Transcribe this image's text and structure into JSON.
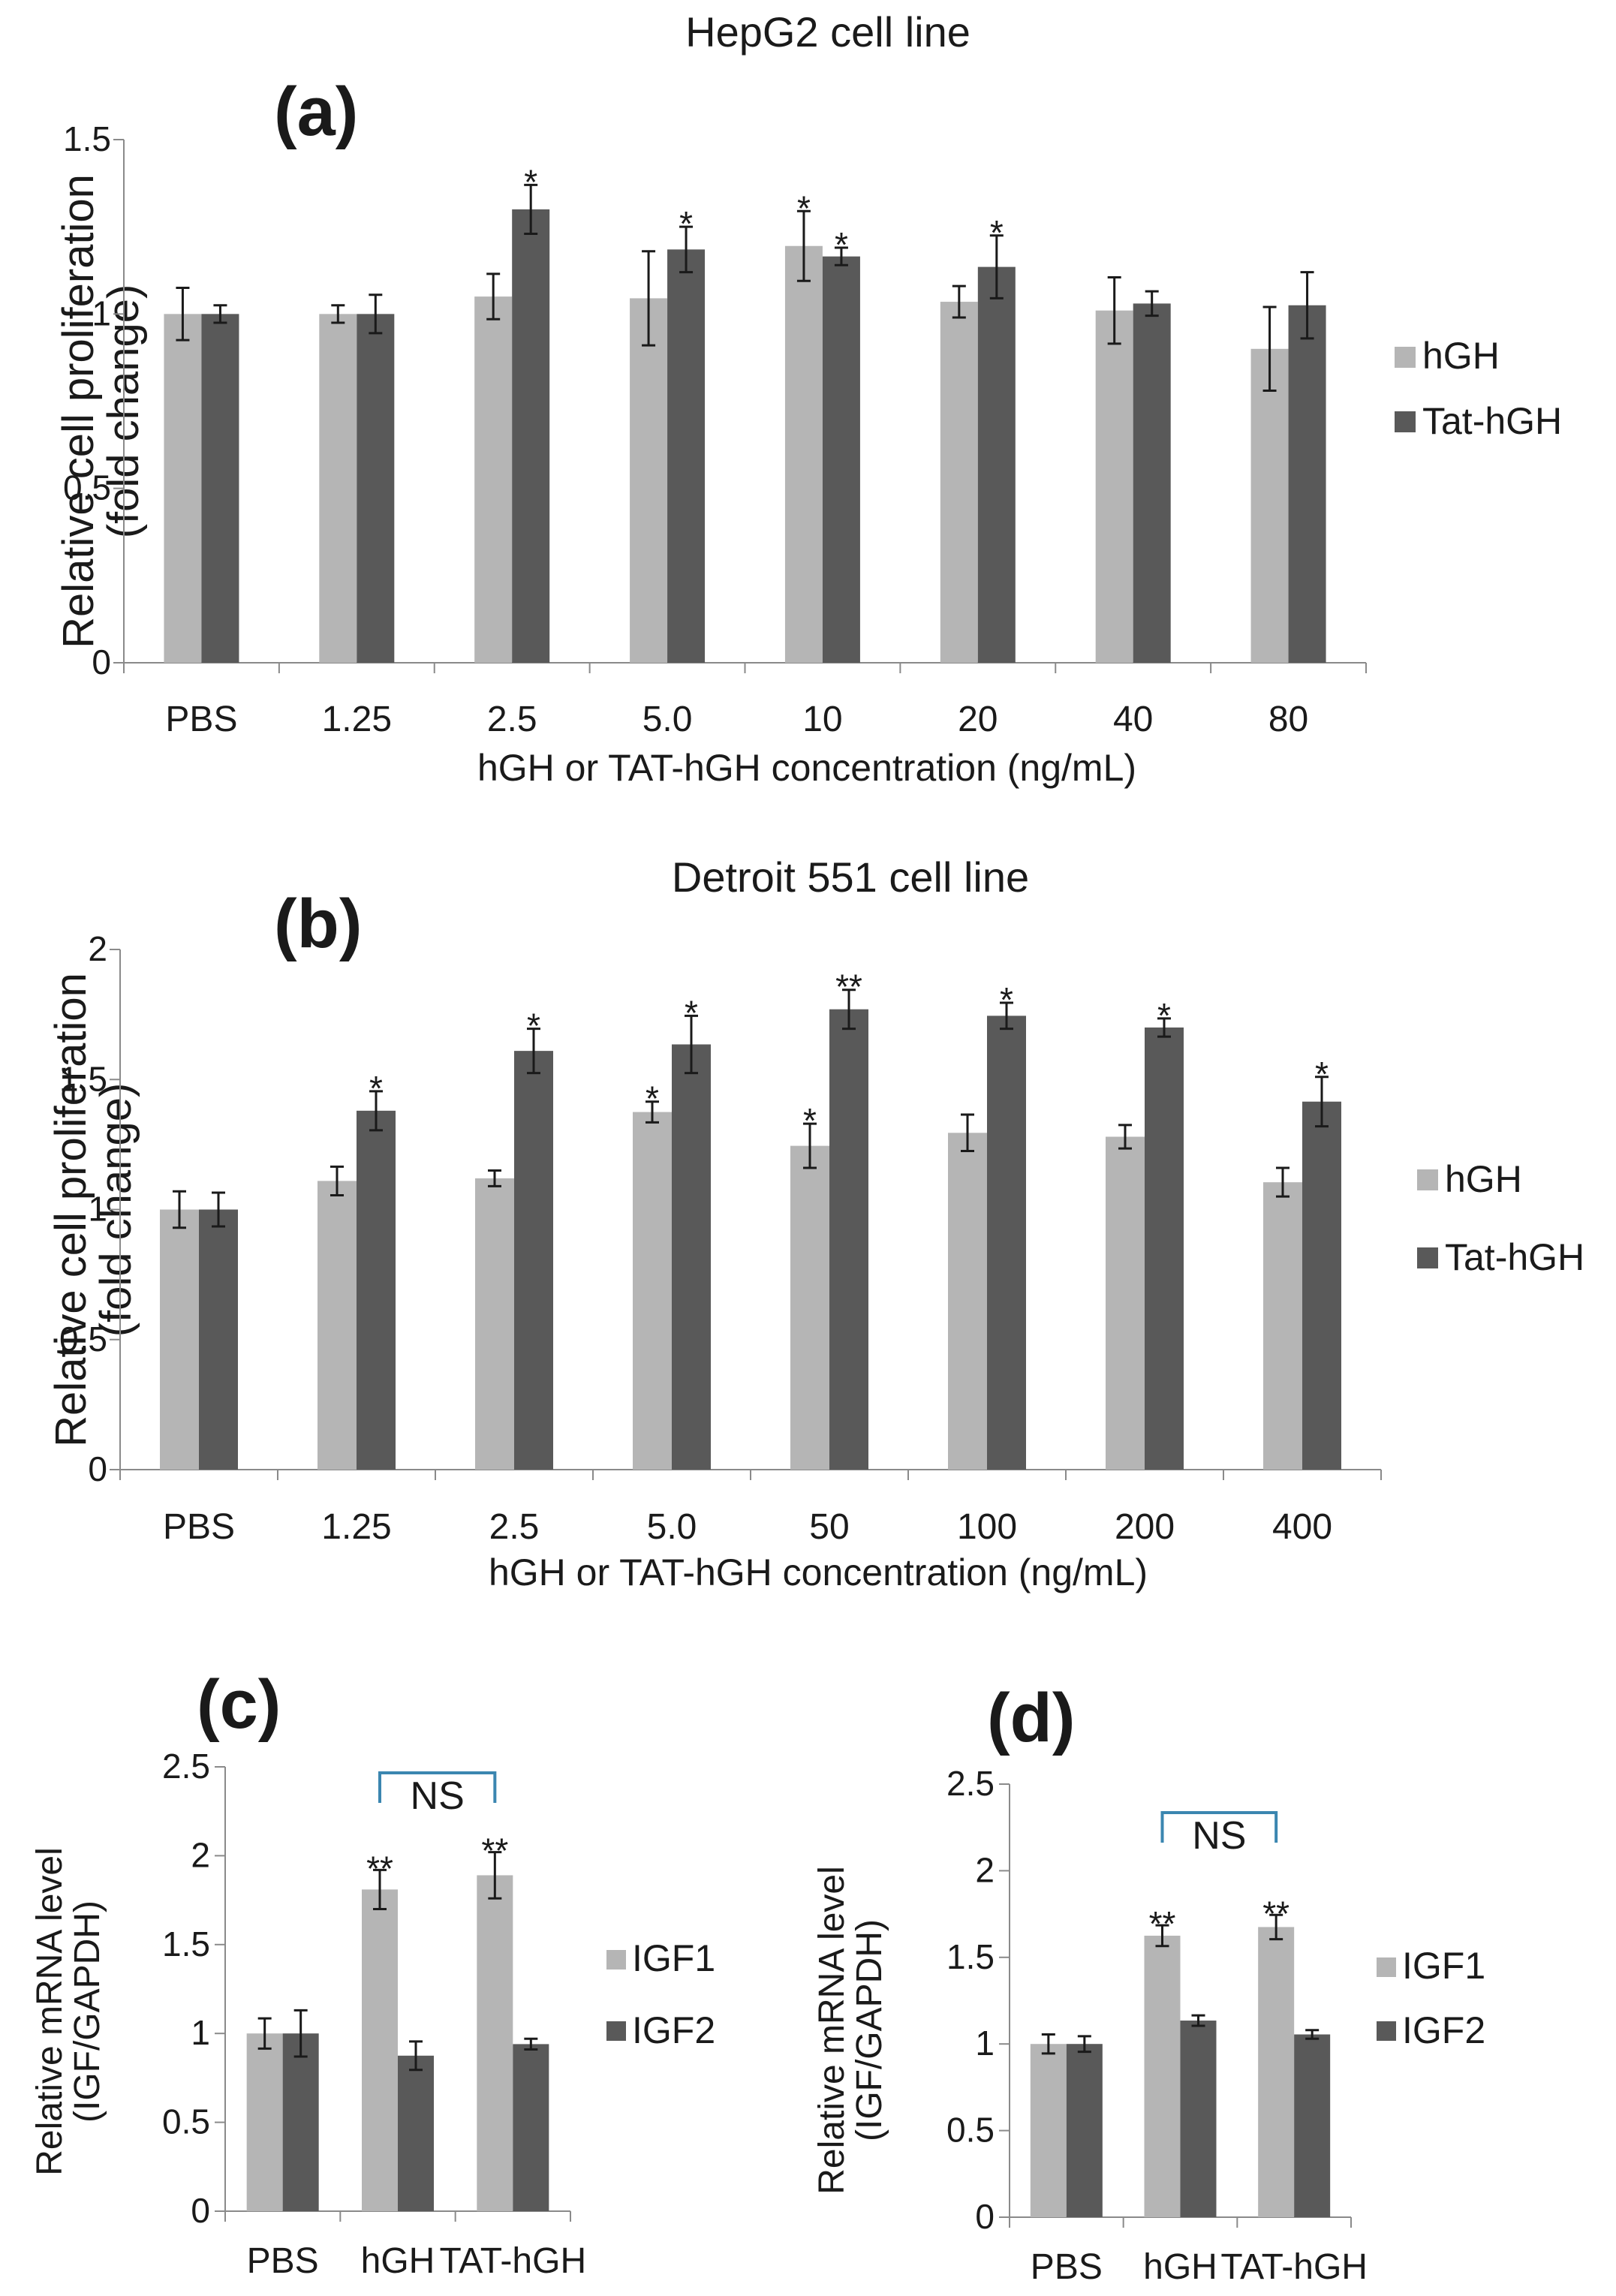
{
  "figure": {
    "colors": {
      "light": "#b5b5b5",
      "dark": "#595959",
      "axis": "#8a8a8a",
      "bracket": "#3b86b0"
    }
  },
  "chart_data": [
    {
      "id": "a",
      "type": "bar",
      "panel_label": "(a)",
      "title": "HepG2 cell line",
      "xlabel": "hGH or TAT-hGH concentration  (ng/mL)",
      "ylabel": [
        "Relative cell proliferation",
        "(fold change)"
      ],
      "ylim": [
        0,
        1.5
      ],
      "yticks": [
        0,
        0.5,
        1,
        1.5
      ],
      "ytick_labels": [
        "0",
        "0.5",
        "1",
        "1.5"
      ],
      "categories": [
        "PBS",
        "1.25",
        "2.5",
        "5.0",
        "10",
        "20",
        "40",
        "80"
      ],
      "series": [
        {
          "name": "hGH",
          "color": "light",
          "values": [
            1.0,
            1.0,
            1.05,
            1.045,
            1.195,
            1.035,
            1.01,
            0.9
          ],
          "errors": [
            0.075,
            0.025,
            0.065,
            0.135,
            0.1,
            0.045,
            0.095,
            0.12
          ],
          "sig": [
            "",
            "",
            "",
            "",
            "*",
            "",
            "",
            ""
          ]
        },
        {
          "name": "Tat-hGH",
          "color": "dark",
          "values": [
            1.0,
            1.0,
            1.3,
            1.185,
            1.165,
            1.135,
            1.03,
            1.025
          ],
          "errors": [
            0.025,
            0.055,
            0.07,
            0.065,
            0.025,
            0.09,
            0.035,
            0.095
          ],
          "sig": [
            "",
            "",
            "*",
            "*",
            "*",
            "*",
            "",
            ""
          ]
        }
      ]
    },
    {
      "id": "b",
      "type": "bar",
      "panel_label": "(b)",
      "title": "Detroit 551 cell line",
      "xlabel": "hGH or TAT-hGH concentration (ng/mL)",
      "ylabel": [
        "Relative cell proliferation",
        "(fold change)"
      ],
      "ylim": [
        0,
        2
      ],
      "yticks": [
        0,
        0.5,
        1,
        1.5,
        2
      ],
      "ytick_labels": [
        "0",
        "0.5",
        "1",
        "1.5",
        "2"
      ],
      "categories": [
        "PBS",
        "1.25",
        "2.5",
        "5.0",
        "50",
        "100",
        "200",
        "400"
      ],
      "series": [
        {
          "name": "hGH",
          "color": "light",
          "values": [
            1.0,
            1.11,
            1.12,
            1.375,
            1.245,
            1.295,
            1.28,
            1.105
          ],
          "errors": [
            0.07,
            0.055,
            0.03,
            0.04,
            0.085,
            0.07,
            0.045,
            0.055
          ],
          "sig": [
            "",
            "",
            "",
            "*",
            "*",
            "",
            "",
            ""
          ]
        },
        {
          "name": "Tat-hGH",
          "color": "dark",
          "values": [
            1.0,
            1.38,
            1.61,
            1.635,
            1.77,
            1.745,
            1.7,
            1.415
          ],
          "errors": [
            0.065,
            0.075,
            0.085,
            0.11,
            0.075,
            0.05,
            0.035,
            0.095
          ],
          "sig": [
            "",
            "*",
            "*",
            "*",
            "**",
            "*",
            "*",
            "*"
          ]
        }
      ]
    },
    {
      "id": "c",
      "type": "bar",
      "panel_label": "(c)",
      "title": "",
      "xlabel": "",
      "ylabel": [
        "Relative mRNA level",
        "(IGF/GAPDH)"
      ],
      "ylim": [
        0,
        2.5
      ],
      "yticks": [
        0,
        0.5,
        1,
        1.5,
        2,
        2.5
      ],
      "ytick_labels": [
        "0",
        "0.5",
        "1",
        "1.5",
        "2",
        "2.5"
      ],
      "categories": [
        "PBS",
        "hGH",
        "TAT-hGH"
      ],
      "series": [
        {
          "name": "IGF1",
          "color": "light",
          "values": [
            1.0,
            1.81,
            1.89
          ],
          "errors": [
            0.085,
            0.11,
            0.13
          ],
          "sig": [
            "",
            "**",
            "**"
          ]
        },
        {
          "name": "IGF2",
          "color": "dark",
          "values": [
            1.0,
            0.875,
            0.94
          ],
          "errors": [
            0.13,
            0.08,
            0.03
          ],
          "sig": [
            "",
            "",
            ""
          ]
        }
      ],
      "annotation": "NS"
    },
    {
      "id": "d",
      "type": "bar",
      "panel_label": "(d)",
      "title": "",
      "xlabel": "",
      "ylabel": [
        "Relative mRNA level",
        "(IGF/GAPDH)"
      ],
      "ylim": [
        0,
        2.5
      ],
      "yticks": [
        0,
        0.5,
        1,
        1.5,
        2,
        2.5
      ],
      "ytick_labels": [
        "0",
        "0.5",
        "1",
        "1.5",
        "2",
        "2.5"
      ],
      "categories": [
        "PBS",
        "hGH",
        "TAT-hGH"
      ],
      "series": [
        {
          "name": "IGF1",
          "color": "light",
          "values": [
            1.0,
            1.625,
            1.675
          ],
          "errors": [
            0.055,
            0.06,
            0.07
          ],
          "sig": [
            "",
            "**",
            "**"
          ]
        },
        {
          "name": "IGF2",
          "color": "dark",
          "values": [
            1.0,
            1.135,
            1.055
          ],
          "errors": [
            0.045,
            0.03,
            0.025
          ],
          "sig": [
            "",
            "",
            ""
          ]
        }
      ],
      "annotation": "NS"
    }
  ]
}
